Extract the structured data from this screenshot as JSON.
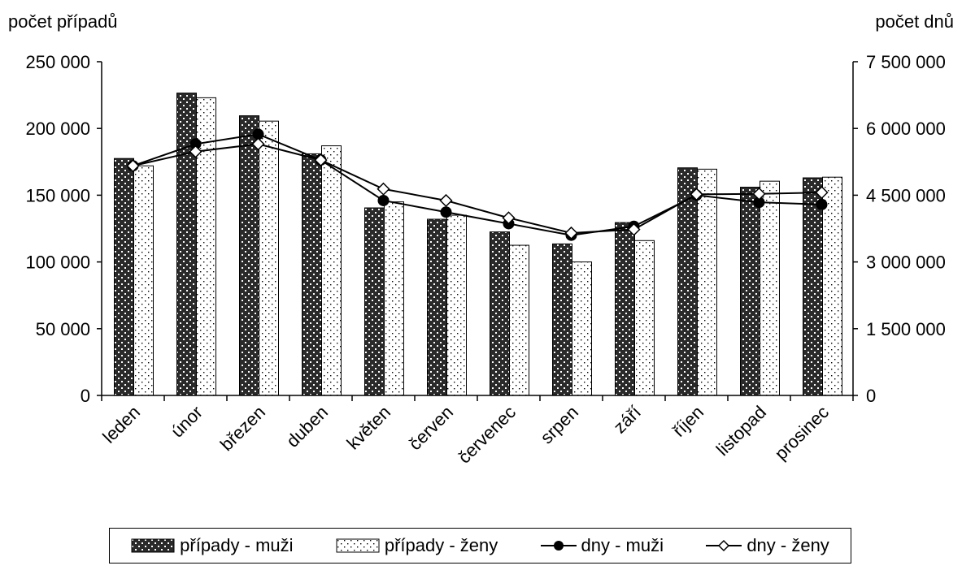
{
  "chart_data": {
    "type": "bar",
    "categories": [
      "leden",
      "únor",
      "březen",
      "duben",
      "květen",
      "červen",
      "červenec",
      "srpen",
      "září",
      "říjen",
      "listopad",
      "prosinec"
    ],
    "y_left": {
      "label": "počet případů",
      "range": [
        0,
        250000
      ],
      "ticks": [
        "0",
        "50 000",
        "100 000",
        "150 000",
        "200 000",
        "250 000"
      ]
    },
    "y_right": {
      "label": "počet dnů",
      "range": [
        0,
        7500000
      ],
      "ticks": [
        "0",
        "1 500 000",
        "3 000 000",
        "4 500 000",
        "6 000 000",
        "7 500 000"
      ]
    },
    "series": [
      {
        "name": "případy - muži",
        "kind": "bar",
        "axis": "left",
        "pattern": "dark-dots",
        "values": [
          177500,
          226500,
          209500,
          181000,
          140500,
          132000,
          122500,
          113500,
          129500,
          170500,
          156000,
          163000
        ]
      },
      {
        "name": "případy - ženy",
        "kind": "bar",
        "axis": "left",
        "pattern": "light-dots",
        "values": [
          172000,
          223000,
          205500,
          187000,
          145000,
          135000,
          112500,
          100000,
          116000,
          169500,
          160500,
          163500
        ]
      },
      {
        "name": "dny - muži",
        "kind": "line",
        "axis": "right",
        "marker": "filled-circle",
        "values": [
          5160000,
          5650000,
          5870000,
          5290000,
          4380000,
          4120000,
          3860000,
          3600000,
          3800000,
          4500000,
          4340000,
          4290000
        ]
      },
      {
        "name": "dny - ženy",
        "kind": "line",
        "axis": "right",
        "marker": "open-diamond",
        "values": [
          5160000,
          5480000,
          5650000,
          5290000,
          4640000,
          4380000,
          3990000,
          3650000,
          3730000,
          4520000,
          4530000,
          4560000
        ]
      }
    ],
    "legend_position": "bottom",
    "grid": false
  },
  "colors": {
    "bar_fill": "#ffffff",
    "ink": "#000000"
  }
}
